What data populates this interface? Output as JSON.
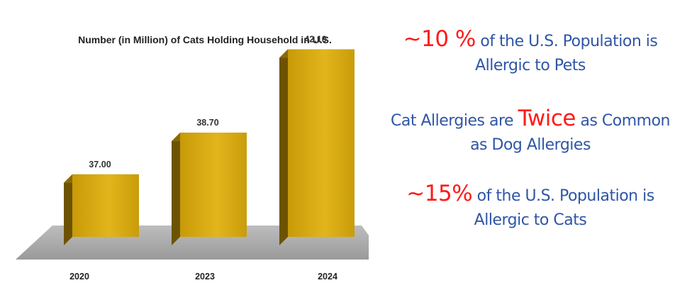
{
  "chart_data": {
    "type": "bar",
    "title": "Number (in Million) of Cats Holding Household in U.S.",
    "categories": [
      "2020",
      "2023",
      "2024"
    ],
    "values": [
      37.0,
      38.7,
      42.1
    ],
    "value_labels": [
      "37.00",
      "38.70",
      "42.10"
    ],
    "xlabel": "",
    "ylabel": "",
    "grid": false,
    "colors": {
      "bar_front": "#d1a20e",
      "bar_highlight": "#e6b820",
      "bar_side": "#6d5300",
      "bar_top": "#8a6a05",
      "floor": "#a6a6a6"
    }
  },
  "facts": [
    {
      "highlight": "~10 %",
      "rest": " of the U.S. Population is",
      "line2": "Allergic to Pets"
    },
    {
      "prefix": "Cat Allergies are ",
      "highlight": "Twice",
      "suffix": " as Common",
      "line2": "as Dog Allergies"
    },
    {
      "highlight": "~15%",
      "rest": " of the U.S. Population is",
      "line2": "Allergic to Cats"
    }
  ],
  "colors": {
    "fact_text": "#2f56a6",
    "highlight": "#ff1a1a"
  }
}
